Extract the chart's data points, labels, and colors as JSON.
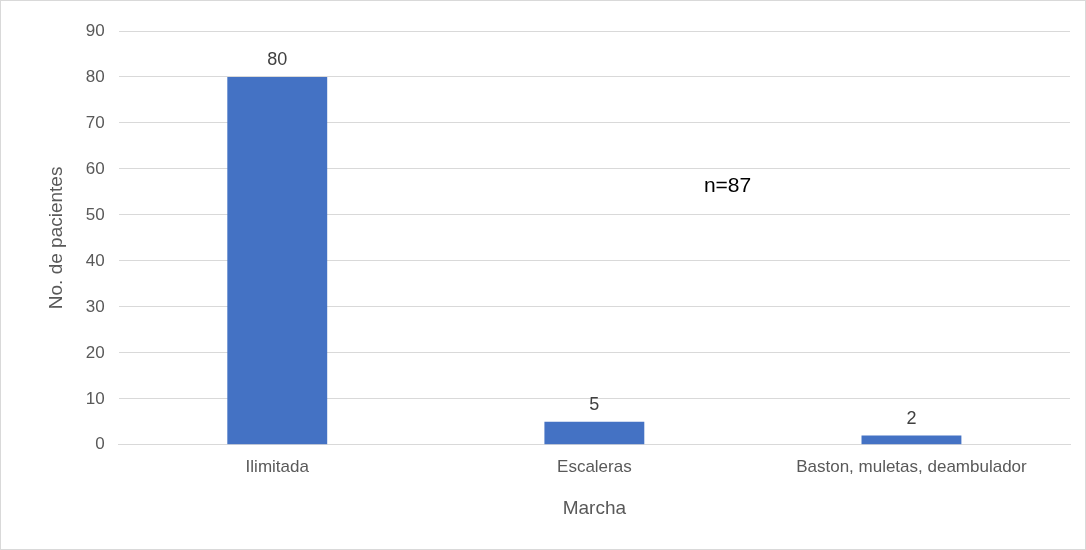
{
  "chart_data": {
    "type": "bar",
    "xlabel": "Marcha",
    "ylabel": "No. de pacientes",
    "categories": [
      "Ilimitada",
      "Escaleras",
      "Baston, muletas, deambulador"
    ],
    "values": [
      80,
      5,
      2
    ],
    "color": "#4472c4",
    "ylim": [
      0,
      90
    ],
    "yticks": [
      0,
      10,
      20,
      30,
      40,
      50,
      60,
      70,
      80,
      90
    ],
    "grid": "y",
    "data_labels": true,
    "annotations": [
      "n=87"
    ]
  }
}
